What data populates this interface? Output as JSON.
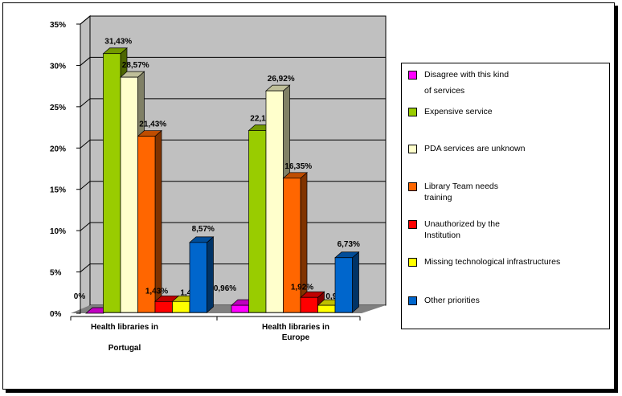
{
  "chart_data": {
    "type": "bar",
    "title": "",
    "xlabel": "",
    "ylabel": "",
    "ylim": [
      0,
      35
    ],
    "yticks": [
      "0%",
      "5%",
      "10%",
      "15%",
      "20%",
      "25%",
      "30%",
      "35%"
    ],
    "grid": true,
    "legend_position": "right",
    "categories": [
      "Health libraries in\n\nPortugal",
      "Health libraries in\nEurope"
    ],
    "series": [
      {
        "name": "Disagree with this kind\nof services",
        "color": "#ff00ff",
        "values": [
          0,
          0.96
        ],
        "labels": [
          "0%",
          "0,96%"
        ]
      },
      {
        "name": "Expensive service",
        "color": "#99cc00",
        "values": [
          31.43,
          22.12
        ],
        "labels": [
          "31,43%",
          "22,12%"
        ]
      },
      {
        "name": "PDA services are unknown",
        "color": "#ffffcc",
        "values": [
          28.57,
          26.92
        ],
        "labels": [
          "28,57%",
          "26,92%"
        ]
      },
      {
        "name": "Library Team needs\n training",
        "color": "#ff6600",
        "values": [
          21.43,
          16.35
        ],
        "labels": [
          "21,43%",
          "16,35%"
        ]
      },
      {
        "name": " Unauthorized by the\nInstitution",
        "color": "#ff0000",
        "values": [
          1.43,
          1.92
        ],
        "labels": [
          "1,43%",
          "1,92%"
        ]
      },
      {
        "name": " Missing technological infrastructures",
        "color": "#ffff00",
        "values": [
          1.43,
          0.96
        ],
        "labels": [
          "1,43%",
          "0,96%"
        ]
      },
      {
        "name": "Other priorities",
        "color": "#0066cc",
        "values": [
          8.57,
          6.73
        ],
        "labels": [
          "8,57%",
          "6,73%"
        ]
      }
    ]
  }
}
